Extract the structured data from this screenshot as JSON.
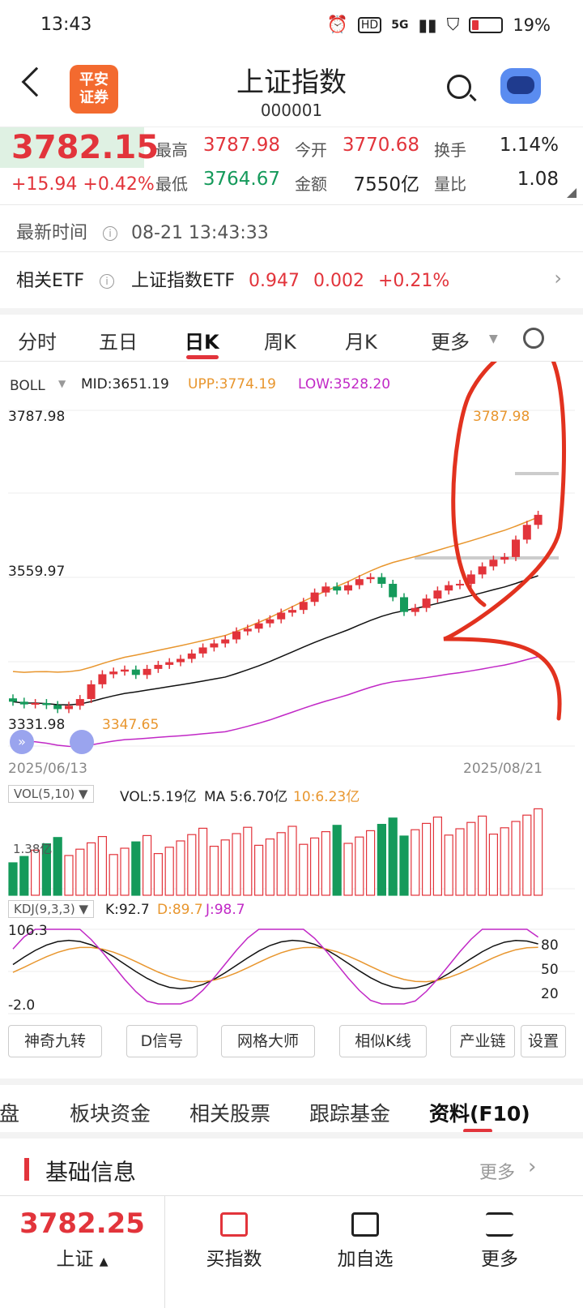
{
  "status": {
    "time": "13:43",
    "battery": "19%",
    "network": "5G"
  },
  "header": {
    "title": "上证指数",
    "code": "000001",
    "logo_line1": "平安",
    "logo_line2": "证券"
  },
  "quote": {
    "price": "3782.15",
    "change": "+15.94 +0.42%",
    "high_label": "最高",
    "high": "3787.98",
    "open_label": "今开",
    "open": "3770.68",
    "turnover_label": "换手",
    "turnover": "1.14%",
    "low_label": "最低",
    "low": "3764.67",
    "amount_label": "金额",
    "amount": "7550亿",
    "vol_ratio_label": "量比",
    "vol_ratio": "1.08"
  },
  "latest": {
    "label": "最新时间",
    "value": "08-21 13:43:33"
  },
  "etf": {
    "label": "相关ETF",
    "name": "上证指数ETF",
    "price": "0.947",
    "change": "0.002",
    "pct": "+0.21%"
  },
  "tabs": [
    "分时",
    "五日",
    "日K",
    "周K",
    "月K",
    "更多"
  ],
  "indicators": {
    "boll_label": "BOLL",
    "mid": "MID:3651.19",
    "upp": "UPP:3774.19",
    "low": "LOW:3528.20",
    "vol_label": "VOL(5,10)",
    "vol": "VOL:5.19亿",
    "vol_ma5": "MA 5:6.70亿",
    "vol_ma10": "10:6.23亿",
    "vol_axis": "1.38亿",
    "kdj_label": "KDJ(9,3,3)",
    "k": "K:92.7",
    "d": "D:89.7",
    "j": "J:98.7"
  },
  "chart_data": {
    "type": "candlestick",
    "y_labels": [
      "3787.98",
      "3559.97",
      "3331.98"
    ],
    "annotations": {
      "max_label": "3787.98",
      "min_label": "3347.65"
    },
    "x_start": "2025/06/13",
    "x_end": "2025/08/21",
    "kdj_axis_left": [
      "106.3",
      "-2.0"
    ],
    "kdj_axis_right": [
      "80",
      "50",
      "20"
    ]
  },
  "tools": [
    "神奇九转",
    "D信号",
    "网格大师",
    "相似K线",
    "产业链",
    "设置"
  ],
  "subtabs": [
    "盯盘",
    "板块资金",
    "相关股票",
    "跟踪基金",
    "资料(F10)"
  ],
  "basic": {
    "title": "基础信息",
    "more": "更多"
  },
  "bottom": {
    "price": "3782.25",
    "name": "上证",
    "buy": "买指数",
    "add": "加自选",
    "more": "更多"
  },
  "colors": {
    "up": "#e2343b",
    "down": "#159a5b",
    "upp": "#e8962e",
    "low": "#c128c6"
  }
}
